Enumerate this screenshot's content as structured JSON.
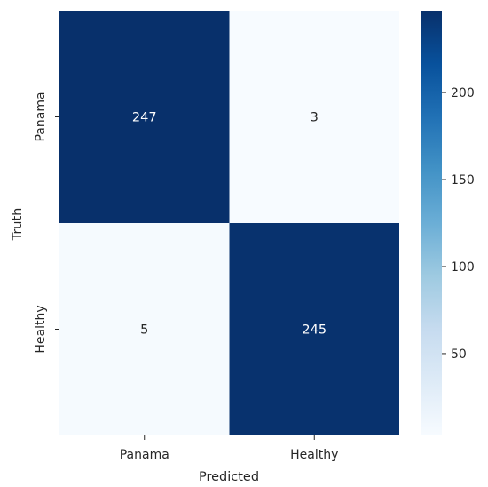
{
  "chart_data": {
    "type": "heatmap",
    "title": "",
    "xlabel": "Predicted",
    "ylabel": "Truth",
    "x_categories": [
      "Panama",
      "Healthy"
    ],
    "y_categories": [
      "Panama",
      "Healthy"
    ],
    "values": [
      [
        247,
        3
      ],
      [
        5,
        245
      ]
    ],
    "colormap": "Blues",
    "colorbar": {
      "range": [
        3,
        247
      ],
      "ticks": [
        50,
        100,
        150,
        200
      ],
      "tick_labels": [
        "50",
        "100",
        "150",
        "200"
      ]
    },
    "annotations": true,
    "dark_cell_color": "#08306b",
    "light_cell_color": "#f7fbff",
    "dark_text_color": "#ffffff",
    "light_text_color": "#262626"
  }
}
